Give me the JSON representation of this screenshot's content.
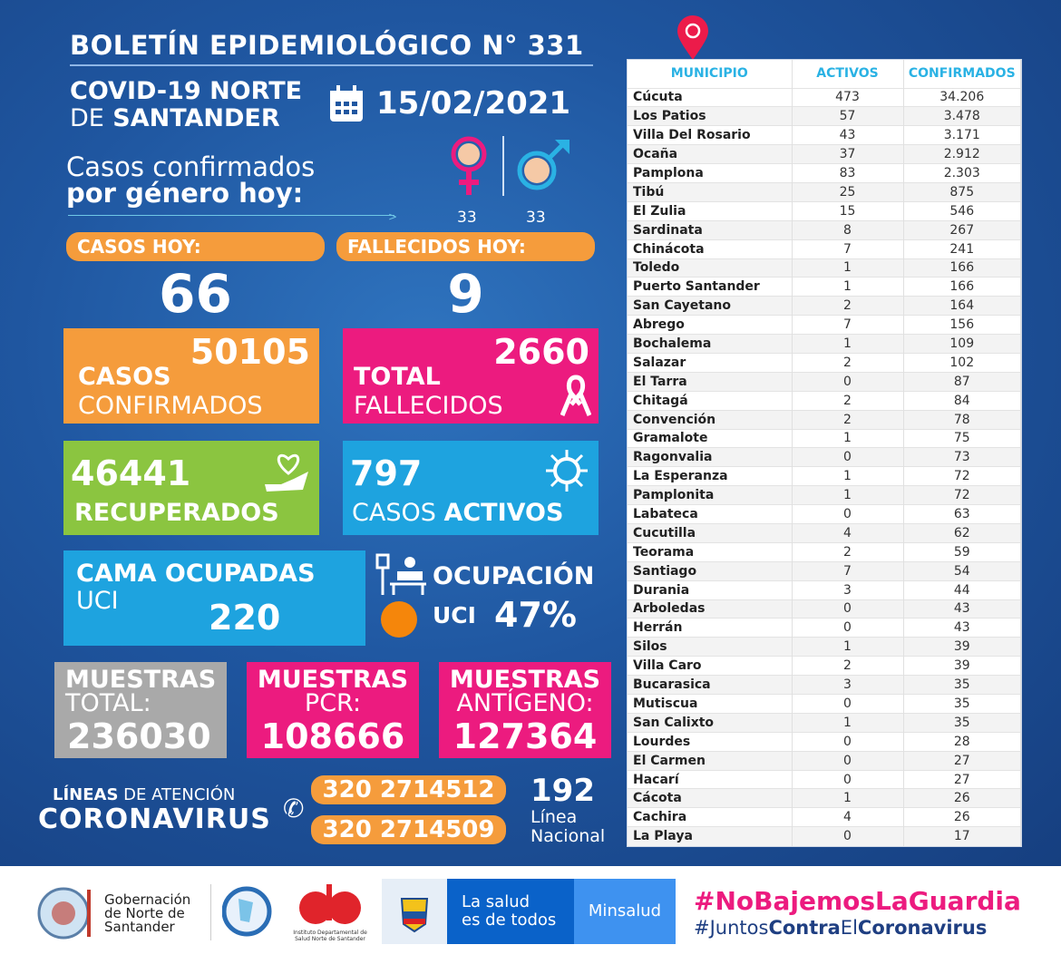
{
  "header": {
    "title": "BOLETÍN EPIDEMIOLÓGICO N° 331",
    "region_line1": "COVID-19 NORTE",
    "region_line2_light": "DE",
    "region_line2_bold": "SANTANDER",
    "date": "15/02/2021"
  },
  "gender": {
    "label_line1": "Casos confirmados",
    "label_line2": "por género hoy:",
    "female": "33",
    "male": "33"
  },
  "today": {
    "cases_label": "CASOS HOY:",
    "cases": "66",
    "deaths_label": "FALLECIDOS HOY:",
    "deaths": "9"
  },
  "confirmed": {
    "value": "50105",
    "line1": "CASOS",
    "line2": "CONFIRMADOS"
  },
  "deaths_total": {
    "value": "2660",
    "line1": "TOTAL",
    "line2": "FALLECIDOS"
  },
  "recovered": {
    "value": "46441",
    "label": "RECUPERADOS"
  },
  "active": {
    "value": "797",
    "label_light": "CASOS",
    "label_bold": "ACTIVOS"
  },
  "icu": {
    "line1": "CAMA OCUPADAS",
    "line2": "UCI",
    "value": "220",
    "occ_label": "OCUPACIÓN",
    "occ_uci": "UCI",
    "occ_value": "47%",
    "occupancy_percent": 47
  },
  "samples": [
    {
      "line1": "MUESTRAS",
      "line2": "TOTAL:",
      "value": "236030"
    },
    {
      "line1": "MUESTRAS",
      "line2": "PCR:",
      "value": "108666"
    },
    {
      "line1": "MUESTRAS",
      "line2": "ANTÍGENO:",
      "value": "127364"
    }
  ],
  "lines": {
    "title_bold": "LÍNEAS",
    "title_light": "DE ATENCIÓN",
    "corona": "CORONAVIRUS",
    "phone1": "320 2714512",
    "phone2": "320 2714509",
    "national": "192",
    "national_l1": "Línea",
    "national_l2": "Nacional"
  },
  "table": {
    "headers": [
      "MUNICIPIO",
      "ACTIVOS",
      "CONFIRMADOS"
    ],
    "rows": [
      [
        "Cúcuta",
        "473",
        "34.206"
      ],
      [
        "Los Patios",
        "57",
        "3.478"
      ],
      [
        "Villa Del Rosario",
        "43",
        "3.171"
      ],
      [
        "Ocaña",
        "37",
        "2.912"
      ],
      [
        "Pamplona",
        "83",
        "2.303"
      ],
      [
        "Tibú",
        "25",
        "875"
      ],
      [
        "El Zulia",
        "15",
        "546"
      ],
      [
        "Sardinata",
        "8",
        "267"
      ],
      [
        "Chinácota",
        "7",
        "241"
      ],
      [
        "Toledo",
        "1",
        "166"
      ],
      [
        "Puerto Santander",
        "1",
        "166"
      ],
      [
        "San Cayetano",
        "2",
        "164"
      ],
      [
        "Abrego",
        "7",
        "156"
      ],
      [
        "Bochalema",
        "1",
        "109"
      ],
      [
        "Salazar",
        "2",
        "102"
      ],
      [
        "El Tarra",
        "0",
        "87"
      ],
      [
        "Chitagá",
        "2",
        "84"
      ],
      [
        "Convención",
        "2",
        "78"
      ],
      [
        "Gramalote",
        "1",
        "75"
      ],
      [
        "Ragonvalia",
        "0",
        "73"
      ],
      [
        "La Esperanza",
        "1",
        "72"
      ],
      [
        "Pamplonita",
        "1",
        "72"
      ],
      [
        "Labateca",
        "0",
        "63"
      ],
      [
        "Cucutilla",
        "4",
        "62"
      ],
      [
        "Teorama",
        "2",
        "59"
      ],
      [
        "Santiago",
        "7",
        "54"
      ],
      [
        "Durania",
        "3",
        "44"
      ],
      [
        "Arboledas",
        "0",
        "43"
      ],
      [
        "Herrán",
        "0",
        "43"
      ],
      [
        "Silos",
        "1",
        "39"
      ],
      [
        "Villa Caro",
        "2",
        "39"
      ],
      [
        "Bucarasica",
        "3",
        "35"
      ],
      [
        "Mutiscua",
        "0",
        "35"
      ],
      [
        "San Calixto",
        "1",
        "35"
      ],
      [
        "Lourdes",
        "0",
        "28"
      ],
      [
        "El Carmen",
        "0",
        "27"
      ],
      [
        "Hacarí",
        "0",
        "27"
      ],
      [
        "Cácota",
        "1",
        "26"
      ],
      [
        "Cachira",
        "4",
        "26"
      ],
      [
        "La Playa",
        "0",
        "17"
      ]
    ]
  },
  "footer": {
    "gob_l1": "Gobernación",
    "gob_l2": "de Norte de",
    "gob_l3": "Santander",
    "ids_caption": "Instituto Departamental de Salud Norte de Santander",
    "salud_l1": "La salud",
    "salud_l2": "es de todos",
    "minsalud": "Minsalud",
    "hashtag1": "#NoBajemosLaGuardia",
    "hashtag2_a": "#Juntos",
    "hashtag2_b": "Contra",
    "hashtag2_c": "El",
    "hashtag2_d": "Coronavirus"
  },
  "colors": {
    "orange": "#f59c3c",
    "pink": "#ec1b7f",
    "green": "#8bc540",
    "blue": "#1ea3df",
    "gray": "#a9a9a9",
    "cyan": "#2ab2e4"
  }
}
